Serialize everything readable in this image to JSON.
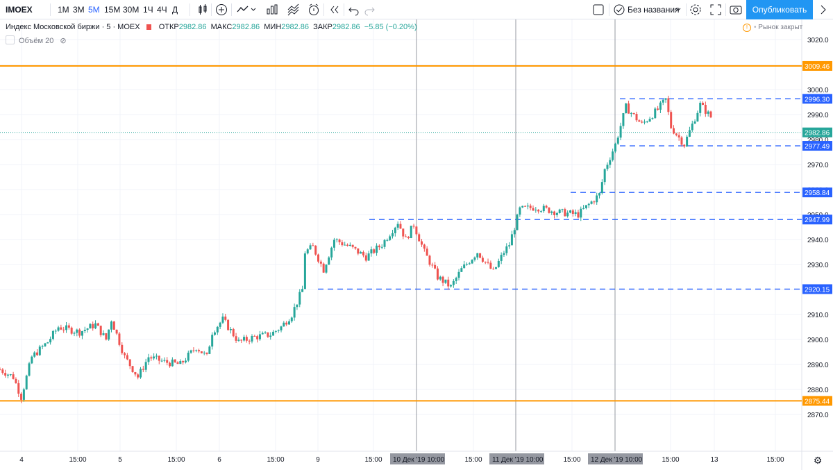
{
  "toolbar": {
    "symbol": "IMOEX",
    "intervals": [
      "1М",
      "3М",
      "5М",
      "15М",
      "30М",
      "1Ч",
      "4Ч",
      "Д"
    ],
    "active_interval": "5М",
    "layout_name": "Без названия",
    "publish_label": "Опубликовать"
  },
  "legend": {
    "title": "Индекс Московской биржи · 5 · MOEX",
    "open_label": "ОТКР",
    "open": "2982.86",
    "high_label": "МАКС",
    "high": "2982.86",
    "low_label": "МИН",
    "low": "2982.86",
    "close_label": "ЗАКР",
    "close": "2982.86",
    "change": "−5.85 (−0.20%)",
    "volume": "Объём 20",
    "market_status": "Рынок закрыт"
  },
  "colors": {
    "up": "#26a69a",
    "down": "#ef5350",
    "horizontal_orange": "#ff9800",
    "dashed": "#2962ff",
    "accent": "#2196f3"
  },
  "chart_data": {
    "type": "candlestick",
    "title": "Индекс Московской биржи · 5 · MOEX",
    "ylim": [
      2865,
      3026
    ],
    "y_ticks": [
      2870,
      2880,
      2890,
      2900,
      2910,
      2920,
      2930,
      2940,
      2950,
      2960,
      2970,
      2980,
      2990,
      3000,
      3010,
      3020
    ],
    "x_ticks": [
      "4",
      "15:00",
      "5",
      "15:00",
      "6",
      "15:00",
      "9",
      "15:00",
      "15:00",
      "15:00",
      "15:00",
      "13",
      "15:00"
    ],
    "session_labels": [
      "10 Дек '19  10:00",
      "11 Дек '19  10:00",
      "12 Дек '19  10:00"
    ],
    "last_price": 2982.86,
    "horizontal_lines": [
      {
        "label": "3009.46",
        "value": 3009.46,
        "style": "solid",
        "color": "#ff9800"
      },
      {
        "label": "2875.44",
        "value": 2875.44,
        "style": "solid",
        "color": "#ff9800"
      }
    ],
    "dashed_lines": [
      {
        "label": "2996.30",
        "value": 2996.3
      },
      {
        "label": "2977.49",
        "value": 2977.49
      },
      {
        "label": "2958.84",
        "value": 2958.84
      },
      {
        "label": "2947.99",
        "value": 2947.99
      },
      {
        "label": "2920.15",
        "value": 2920.15
      }
    ],
    "price_path": [
      {
        "t": 0,
        "p": 2888
      },
      {
        "t": 5,
        "p": 2885
      },
      {
        "t": 8,
        "p": 2877
      },
      {
        "t": 12,
        "p": 2893
      },
      {
        "t": 18,
        "p": 2899
      },
      {
        "t": 22,
        "p": 2905
      },
      {
        "t": 30,
        "p": 2903
      },
      {
        "t": 36,
        "p": 2906
      },
      {
        "t": 40,
        "p": 2900
      },
      {
        "t": 42,
        "p": 2908
      },
      {
        "t": 47,
        "p": 2893
      },
      {
        "t": 52,
        "p": 2885
      },
      {
        "t": 56,
        "p": 2893
      },
      {
        "t": 62,
        "p": 2891
      },
      {
        "t": 68,
        "p": 2890
      },
      {
        "t": 74,
        "p": 2897
      },
      {
        "t": 78,
        "p": 2893
      },
      {
        "t": 80,
        "p": 2903
      },
      {
        "t": 84,
        "p": 2908
      },
      {
        "t": 90,
        "p": 2899
      },
      {
        "t": 96,
        "p": 2901
      },
      {
        "t": 102,
        "p": 2902
      },
      {
        "t": 106,
        "p": 2905
      },
      {
        "t": 110,
        "p": 2910
      },
      {
        "t": 114,
        "p": 2920
      },
      {
        "t": 115,
        "p": 2935
      },
      {
        "t": 118,
        "p": 2937
      },
      {
        "t": 122,
        "p": 2928
      },
      {
        "t": 126,
        "p": 2940
      },
      {
        "t": 132,
        "p": 2937
      },
      {
        "t": 138,
        "p": 2933
      },
      {
        "t": 144,
        "p": 2938
      },
      {
        "t": 150,
        "p": 2947
      },
      {
        "t": 153,
        "p": 2940
      },
      {
        "t": 156,
        "p": 2946
      },
      {
        "t": 160,
        "p": 2935
      },
      {
        "t": 165,
        "p": 2925
      },
      {
        "t": 170,
        "p": 2921
      },
      {
        "t": 174,
        "p": 2928
      },
      {
        "t": 180,
        "p": 2935
      },
      {
        "t": 186,
        "p": 2927
      },
      {
        "t": 190,
        "p": 2935
      },
      {
        "t": 192,
        "p": 2938
      },
      {
        "t": 196,
        "p": 2952
      },
      {
        "t": 202,
        "p": 2953
      },
      {
        "t": 210,
        "p": 2951
      },
      {
        "t": 218,
        "p": 2950
      },
      {
        "t": 226,
        "p": 2958
      },
      {
        "t": 228,
        "p": 2968
      },
      {
        "t": 232,
        "p": 2978
      },
      {
        "t": 236,
        "p": 2993
      },
      {
        "t": 242,
        "p": 2986
      },
      {
        "t": 248,
        "p": 2992
      },
      {
        "t": 251,
        "p": 2996
      },
      {
        "t": 253,
        "p": 2985
      },
      {
        "t": 258,
        "p": 2978
      },
      {
        "t": 264,
        "p": 2994
      },
      {
        "t": 268,
        "p": 2989
      }
    ],
    "session_start_times": [
      0,
      42,
      80,
      115,
      156,
      192,
      228
    ],
    "total_bars": 268
  }
}
